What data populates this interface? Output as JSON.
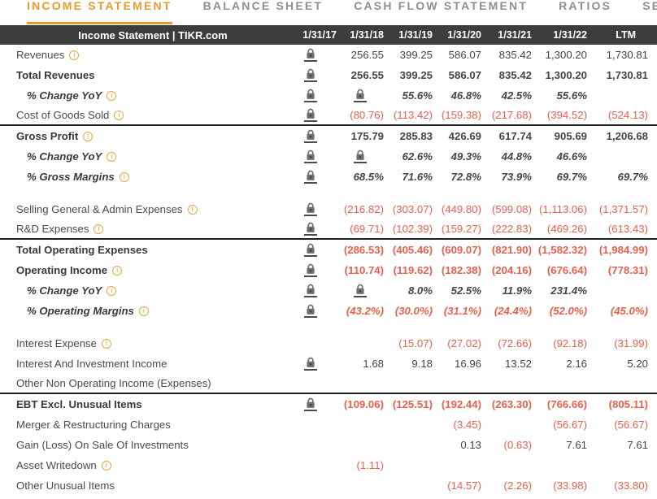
{
  "tabs": [
    {
      "label": "INCOME STATEMENT",
      "active": true
    },
    {
      "label": "BALANCE SHEET",
      "active": false
    },
    {
      "label": "CASH FLOW STATEMENT",
      "active": false
    },
    {
      "label": "RATIOS",
      "active": false
    },
    {
      "label": "SEGMENT",
      "active": false
    }
  ],
  "table": {
    "title": "Income Statement | TIKR.com",
    "columns": [
      "1/31/17",
      "1/31/18",
      "1/31/19",
      "1/31/20",
      "1/31/21",
      "1/31/22",
      "LTM"
    ],
    "rows": [
      {
        "label": "Revenues",
        "info": true,
        "style": "normal",
        "cells": [
          "LOCK",
          "256.55",
          "399.25",
          "586.07",
          "835.42",
          "1,300.20",
          "1,730.81"
        ]
      },
      {
        "label": "Total Revenues",
        "info": false,
        "style": "bold",
        "cells": [
          "LOCK",
          "256.55",
          "399.25",
          "586.07",
          "835.42",
          "1,300.20",
          "1,730.81"
        ]
      },
      {
        "label": "% Change YoY",
        "info": true,
        "style": "pct",
        "cells": [
          "LOCK",
          "LOCK",
          "55.6%",
          "46.8%",
          "42.5%",
          "55.6%",
          ""
        ]
      },
      {
        "label": "Cost of Goods Sold",
        "info": true,
        "style": "normal",
        "divider_after": true,
        "cells": [
          "LOCK",
          "(80.76)",
          "(113.42)",
          "(159.38)",
          "(217.68)",
          "(394.52)",
          "(524.13)"
        ]
      },
      {
        "label": "Gross Profit",
        "info": true,
        "style": "bold",
        "cells": [
          "LOCK",
          "175.79",
          "285.83",
          "426.69",
          "617.74",
          "905.69",
          "1,206.68"
        ]
      },
      {
        "label": "% Change YoY",
        "info": true,
        "style": "pct",
        "cells": [
          "LOCK",
          "LOCK",
          "62.6%",
          "49.3%",
          "44.8%",
          "46.6%",
          ""
        ]
      },
      {
        "label": "% Gross Margins",
        "info": true,
        "style": "pct",
        "spacer_after": true,
        "cells": [
          "LOCK",
          "68.5%",
          "71.6%",
          "72.8%",
          "73.9%",
          "69.7%",
          "69.7%"
        ]
      },
      {
        "label": "Selling General & Admin Expenses",
        "info": true,
        "style": "normal",
        "cells": [
          "LOCK",
          "(216.82)",
          "(303.07)",
          "(449.80)",
          "(599.08)",
          "(1,113.06)",
          "(1,371.57)"
        ]
      },
      {
        "label": "R&D Expenses",
        "info": true,
        "style": "normal",
        "divider_after": true,
        "cells": [
          "LOCK",
          "(69.71)",
          "(102.39)",
          "(159.27)",
          "(222.83)",
          "(469.26)",
          "(613.43)"
        ]
      },
      {
        "label": "Total Operating Expenses",
        "info": false,
        "style": "bold",
        "cells": [
          "LOCK",
          "(286.53)",
          "(405.46)",
          "(609.07)",
          "(821.90)",
          "(1,582.32)",
          "(1,984.99)"
        ]
      },
      {
        "label": "Operating Income",
        "info": true,
        "style": "bold",
        "cells": [
          "LOCK",
          "(110.74)",
          "(119.62)",
          "(182.38)",
          "(204.16)",
          "(676.64)",
          "(778.31)"
        ]
      },
      {
        "label": "% Change YoY",
        "info": true,
        "style": "pct",
        "cells": [
          "LOCK",
          "LOCK",
          "8.0%",
          "52.5%",
          "11.9%",
          "231.4%",
          ""
        ]
      },
      {
        "label": "% Operating Margins",
        "info": true,
        "style": "pct",
        "spacer_after": true,
        "cells": [
          "LOCK",
          "(43.2%)",
          "(30.0%)",
          "(31.1%)",
          "(24.4%)",
          "(52.0%)",
          "(45.0%)"
        ]
      },
      {
        "label": "Interest Expense",
        "info": true,
        "style": "normal",
        "cells": [
          "",
          "",
          "(15.07)",
          "(27.02)",
          "(72.66)",
          "(92.18)",
          "(31.99)"
        ]
      },
      {
        "label": "Interest And Investment Income",
        "info": false,
        "style": "normal",
        "cells": [
          "LOCK",
          "1.68",
          "9.18",
          "16.96",
          "13.52",
          "2.16",
          "5.20"
        ]
      },
      {
        "label": "Other Non Operating Income (Expenses)",
        "info": false,
        "style": "normal",
        "divider_after": true,
        "cells": [
          "",
          "",
          "",
          "",
          "",
          "",
          ""
        ]
      },
      {
        "label": "EBT Excl. Unusual Items",
        "info": false,
        "style": "bold",
        "cells": [
          "LOCK",
          "(109.06)",
          "(125.51)",
          "(192.44)",
          "(263.30)",
          "(766.66)",
          "(805.11)"
        ]
      },
      {
        "label": "Merger & Restructuring Charges",
        "info": false,
        "style": "normal",
        "cells": [
          "",
          "",
          "",
          "(3.45)",
          "",
          "(56.67)",
          "(56.67)"
        ]
      },
      {
        "label": "Gain (Loss) On Sale Of Investments",
        "info": false,
        "style": "normal",
        "cells": [
          "",
          "",
          "",
          "0.13",
          "(0.63)",
          "7.61",
          "7.61"
        ]
      },
      {
        "label": "Asset Writedown",
        "info": true,
        "style": "normal",
        "cells": [
          "",
          "(1.11)",
          "",
          "",
          "",
          "",
          ""
        ]
      },
      {
        "label": "Other Unusual Items",
        "info": false,
        "style": "normal",
        "cells": [
          "",
          "",
          "",
          "(14.57)",
          "(2.26)",
          "(33.98)",
          "(33.80)"
        ]
      }
    ]
  },
  "icons": {
    "lock": "lock-icon",
    "info": "info-icon"
  },
  "colors": {
    "accent_orange": "#e89c2c",
    "inactive_tab_gray": "#8f8f8f",
    "header_bg": "#3d3d3d",
    "negative_red": "#e8604c",
    "lock_gray": "#6f6f6f",
    "label_text": "#4e4a46"
  }
}
